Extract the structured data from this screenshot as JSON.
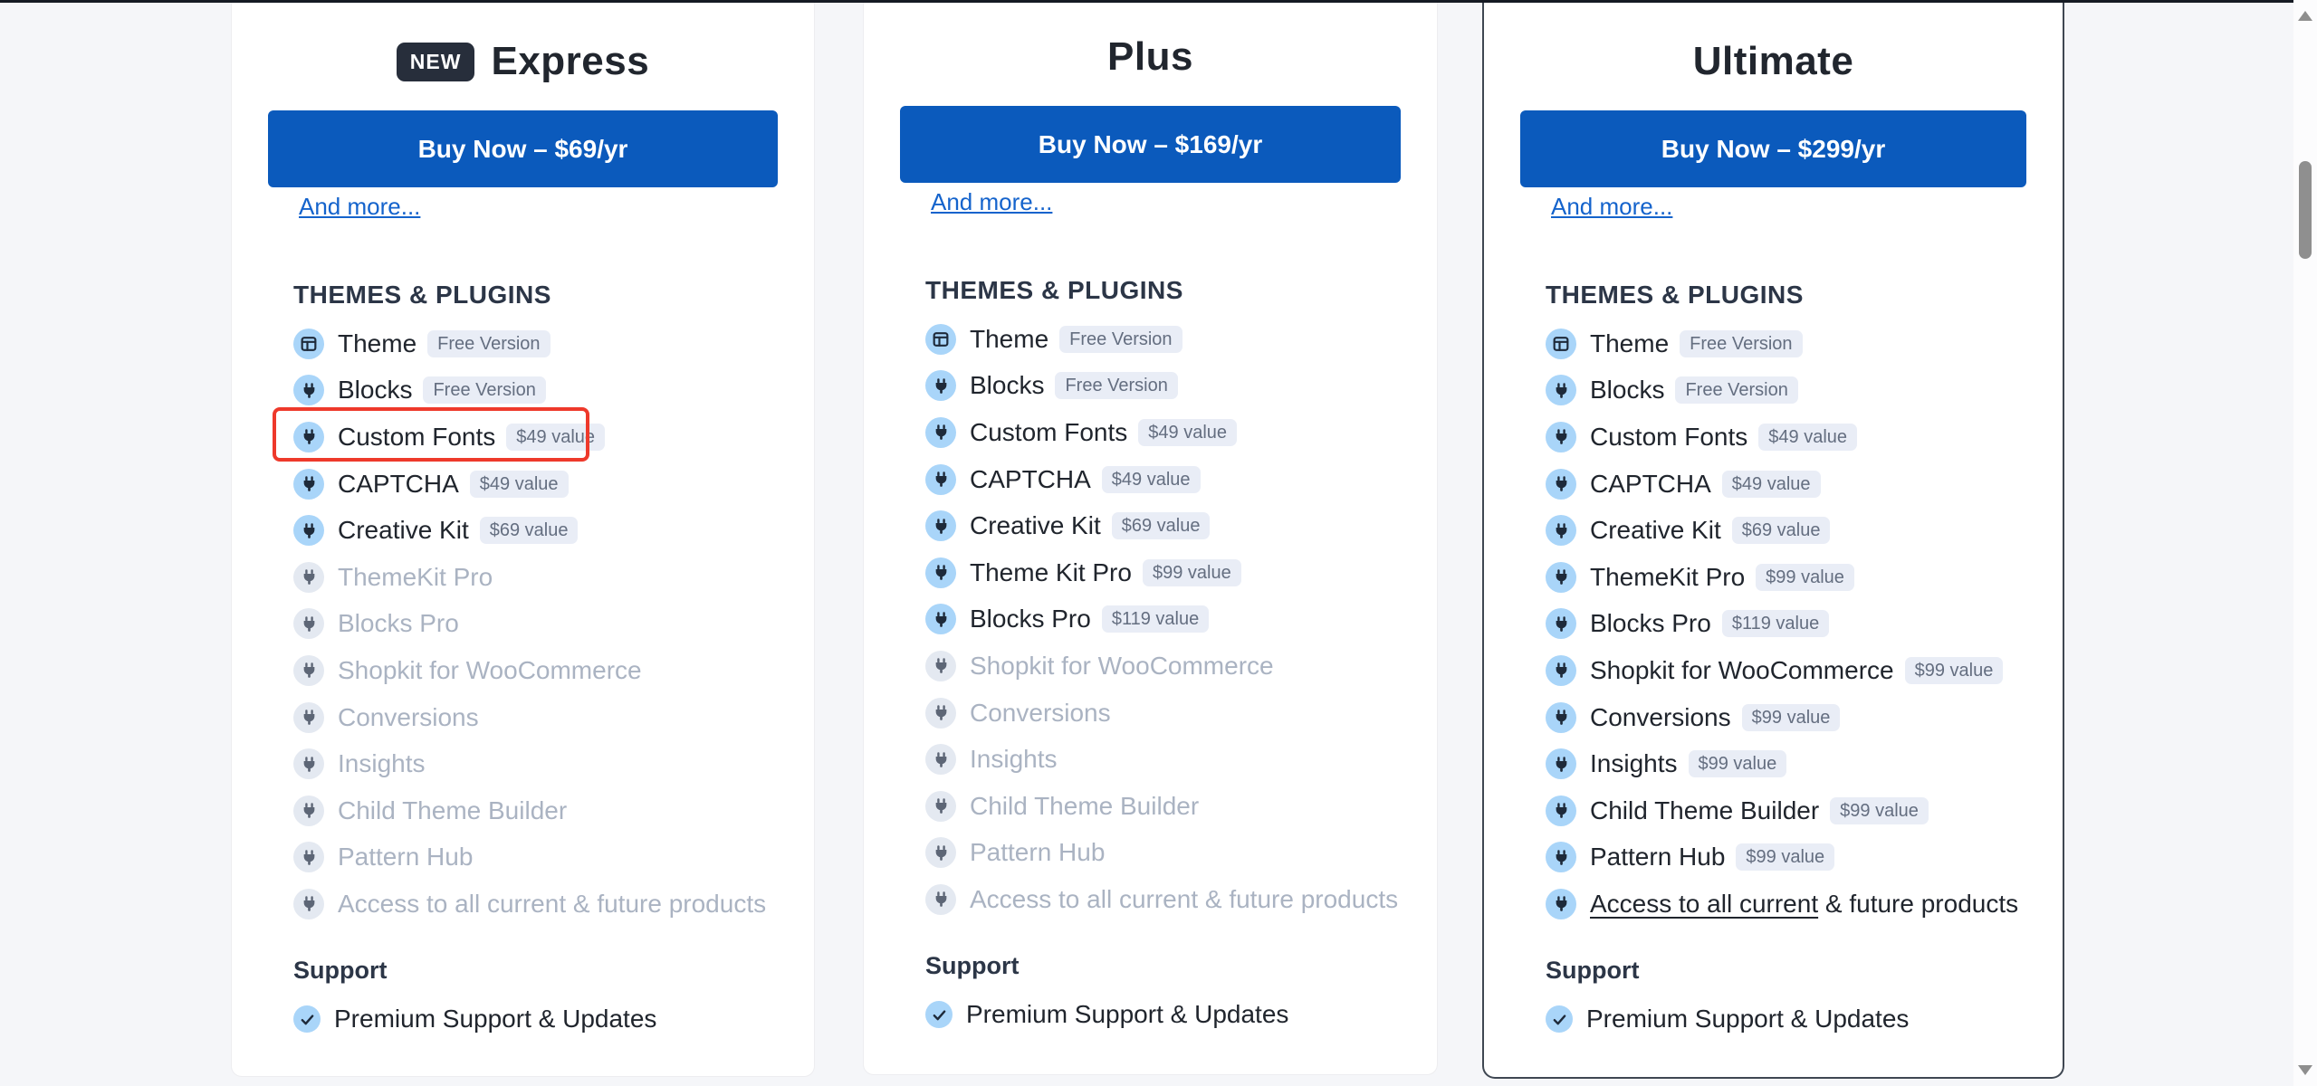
{
  "colors": {
    "page_background": "#f5f6f9",
    "top_border": "#151a23",
    "accent_blue": "#0b5abc",
    "link_blue": "#1463cc",
    "highlight_red": "#ee392b",
    "icon_circle_blue": "#a9d5f9",
    "icon_circle_gray": "#e4e9f1",
    "badge_background": "#e9edf6",
    "badge_text": "#646e80",
    "disabled_text": "#aab3c2",
    "dark_text": "#21262e",
    "ultimate_border": "#3f4752",
    "scrollbar_thumb": "#8f8f8f"
  },
  "plans": [
    {
      "id": "express",
      "badge": "NEW",
      "title": "Express",
      "buy_label": "Buy Now – $69/yr",
      "more_link": "And more...",
      "sections": {
        "themes_plugins": {
          "title": "THEMES & PLUGINS",
          "items": [
            {
              "label": "Theme",
              "badge": "Free Version",
              "included": true,
              "icon": "theme"
            },
            {
              "label": "Blocks",
              "badge": "Free Version",
              "included": true,
              "icon": "plug"
            },
            {
              "label": "Custom Fonts",
              "badge": "$49 value",
              "included": true,
              "icon": "plug",
              "highlighted": true
            },
            {
              "label": "CAPTCHA",
              "badge": "$49 value",
              "included": true,
              "icon": "plug"
            },
            {
              "label": "Creative Kit",
              "badge": "$69 value",
              "included": true,
              "icon": "plug"
            },
            {
              "label": "ThemeKit Pro",
              "included": false,
              "icon": "plug"
            },
            {
              "label": "Blocks Pro",
              "included": false,
              "icon": "plug"
            },
            {
              "label": "Shopkit for WooCommerce",
              "included": false,
              "icon": "plug"
            },
            {
              "label": "Conversions",
              "included": false,
              "icon": "plug"
            },
            {
              "label": "Insights",
              "included": false,
              "icon": "plug"
            },
            {
              "label": "Child Theme Builder",
              "included": false,
              "icon": "plug"
            },
            {
              "label": "Pattern Hub",
              "included": false,
              "icon": "plug"
            },
            {
              "label": "Access to all current & future products",
              "included": false,
              "icon": "plug"
            }
          ]
        },
        "support": {
          "title": "Support",
          "items": [
            {
              "label": "Premium Support & Updates",
              "icon": "check"
            }
          ]
        }
      }
    },
    {
      "id": "plus",
      "title": "Plus",
      "buy_label": "Buy Now – $169/yr",
      "more_link": "And more...",
      "sections": {
        "themes_plugins": {
          "title": "THEMES & PLUGINS",
          "items": [
            {
              "label": "Theme",
              "badge": "Free Version",
              "included": true,
              "icon": "theme"
            },
            {
              "label": "Blocks",
              "badge": "Free Version",
              "included": true,
              "icon": "plug"
            },
            {
              "label": "Custom Fonts",
              "badge": "$49 value",
              "included": true,
              "icon": "plug"
            },
            {
              "label": "CAPTCHA",
              "badge": "$49 value",
              "included": true,
              "icon": "plug"
            },
            {
              "label": "Creative Kit",
              "badge": "$69 value",
              "included": true,
              "icon": "plug"
            },
            {
              "label": "Theme Kit Pro",
              "badge": "$99 value",
              "included": true,
              "icon": "plug"
            },
            {
              "label": "Blocks Pro",
              "badge": "$119 value",
              "included": true,
              "icon": "plug"
            },
            {
              "label": "Shopkit for WooCommerce",
              "included": false,
              "icon": "plug"
            },
            {
              "label": "Conversions",
              "included": false,
              "icon": "plug"
            },
            {
              "label": "Insights",
              "included": false,
              "icon": "plug"
            },
            {
              "label": "Child Theme Builder",
              "included": false,
              "icon": "plug"
            },
            {
              "label": "Pattern Hub",
              "included": false,
              "icon": "plug"
            },
            {
              "label": "Access to all current & future products",
              "included": false,
              "icon": "plug"
            }
          ]
        },
        "support": {
          "title": "Support",
          "items": [
            {
              "label": "Premium Support & Updates",
              "icon": "check"
            }
          ]
        }
      }
    },
    {
      "id": "ultimate",
      "title": "Ultimate",
      "buy_label": "Buy Now – $299/yr",
      "more_link": "And more...",
      "sections": {
        "themes_plugins": {
          "title": "THEMES & PLUGINS",
          "items": [
            {
              "label": "Theme",
              "badge": "Free Version",
              "included": true,
              "icon": "theme"
            },
            {
              "label": "Blocks",
              "badge": "Free Version",
              "included": true,
              "icon": "plug"
            },
            {
              "label": "Custom Fonts",
              "badge": "$49 value",
              "included": true,
              "icon": "plug"
            },
            {
              "label": "CAPTCHA",
              "badge": "$49 value",
              "included": true,
              "icon": "plug"
            },
            {
              "label": "Creative Kit",
              "badge": "$69 value",
              "included": true,
              "icon": "plug"
            },
            {
              "label": "ThemeKit Pro",
              "badge": "$99 value",
              "included": true,
              "icon": "plug"
            },
            {
              "label": "Blocks Pro",
              "badge": "$119 value",
              "included": true,
              "icon": "plug"
            },
            {
              "label": "Shopkit for WooCommerce",
              "badge": "$99 value",
              "included": true,
              "icon": "plug"
            },
            {
              "label": "Conversions",
              "badge": "$99 value",
              "included": true,
              "icon": "plug"
            },
            {
              "label": "Insights",
              "badge": "$99 value",
              "included": true,
              "icon": "plug"
            },
            {
              "label": "Child Theme Builder",
              "badge": "$99 value",
              "included": true,
              "icon": "plug"
            },
            {
              "label": "Pattern Hub",
              "badge": "$99 value",
              "included": true,
              "icon": "plug"
            },
            {
              "label_underlined": "Access to all current",
              "label_rest": " & future products",
              "included": true,
              "icon": "plug"
            }
          ]
        },
        "support": {
          "title": "Support",
          "items": [
            {
              "label": "Premium Support & Updates",
              "icon": "check"
            }
          ]
        }
      }
    }
  ],
  "scrollbar": {
    "up_arrow": "▲",
    "down_arrow": "▼"
  }
}
